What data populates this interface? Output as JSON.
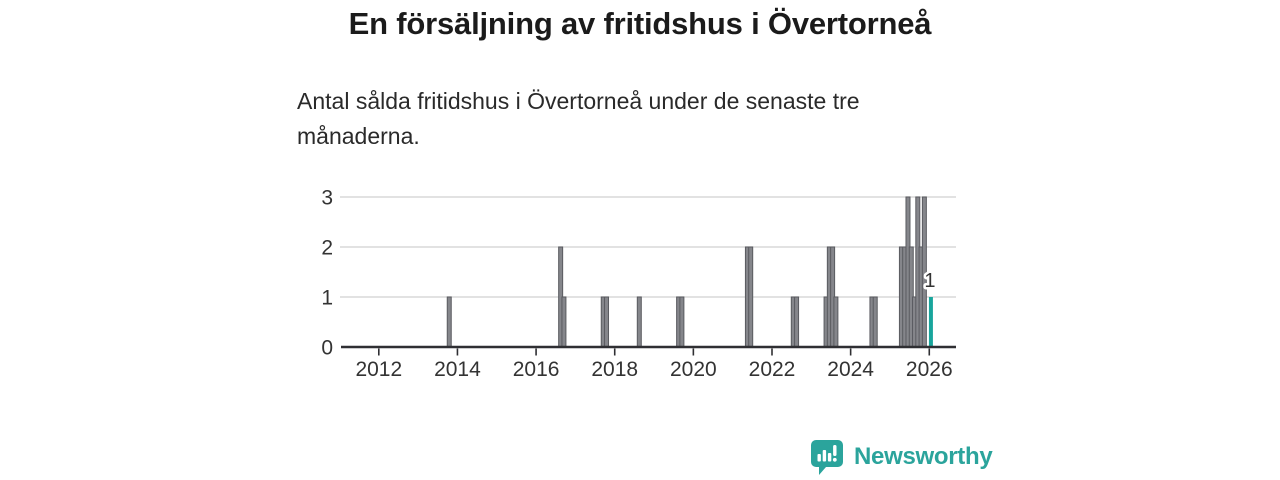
{
  "title": "En försäljning av fritidshus i Övertorneå",
  "subtitle": "Antal sålda fritidshus i Övertorneå under de senaste tre månaderna.",
  "footer": {
    "brand": "Newsworthy",
    "logo_icon": "newsworthy-bar-chart-bubble-icon"
  },
  "colors": {
    "bar": "#85868b",
    "bar_edge": "#5a5b60",
    "highlight": "#18a59c",
    "grid": "#d9d9d9",
    "axis": "#2f2f33",
    "tick_text": "#333333",
    "label_text": "#333333",
    "brand": "#2ba49c"
  },
  "chart_data": {
    "type": "bar",
    "title": "En försäljning av fritidshus i Övertorneå",
    "subtitle": "Antal sålda fritidshus i Övertorneå under de senaste tre månaderna.",
    "xlabel": "",
    "ylabel": "",
    "x_unit": "månad",
    "y_ticks": [
      0,
      1,
      2,
      3
    ],
    "ylim": [
      0,
      3
    ],
    "x_tick_labels": [
      "2012",
      "2014",
      "2016",
      "2018",
      "2020",
      "2022",
      "2024",
      "2026"
    ],
    "x_tick_years": [
      2012,
      2014,
      2016,
      2018,
      2020,
      2022,
      2024,
      2026
    ],
    "xlim_years": [
      2011.05,
      2026.7
    ],
    "grid": "horizontal",
    "legend": "none",
    "points": [
      {
        "date": "2013-10",
        "value": 1
      },
      {
        "date": "2016-08",
        "value": 2
      },
      {
        "date": "2016-09",
        "value": 1
      },
      {
        "date": "2017-09",
        "value": 1
      },
      {
        "date": "2017-10",
        "value": 1
      },
      {
        "date": "2018-08",
        "value": 1
      },
      {
        "date": "2019-08",
        "value": 1
      },
      {
        "date": "2019-09",
        "value": 1
      },
      {
        "date": "2021-05",
        "value": 2
      },
      {
        "date": "2021-06",
        "value": 2
      },
      {
        "date": "2022-07",
        "value": 1
      },
      {
        "date": "2022-08",
        "value": 1
      },
      {
        "date": "2023-05",
        "value": 1
      },
      {
        "date": "2023-06",
        "value": 2
      },
      {
        "date": "2023-07",
        "value": 2
      },
      {
        "date": "2023-08",
        "value": 1
      },
      {
        "date": "2024-07",
        "value": 1
      },
      {
        "date": "2024-08",
        "value": 1
      },
      {
        "date": "2025-04",
        "value": 2
      },
      {
        "date": "2025-05",
        "value": 2
      },
      {
        "date": "2025-06",
        "value": 3
      },
      {
        "date": "2025-07",
        "value": 2
      },
      {
        "date": "2025-08",
        "value": 1
      },
      {
        "date": "2025-09",
        "value": 3
      },
      {
        "date": "2025-10",
        "value": 2
      },
      {
        "date": "2025-11",
        "value": 3
      }
    ],
    "highlight_point": {
      "date": "2026-01",
      "value": 1,
      "label": "1"
    }
  }
}
